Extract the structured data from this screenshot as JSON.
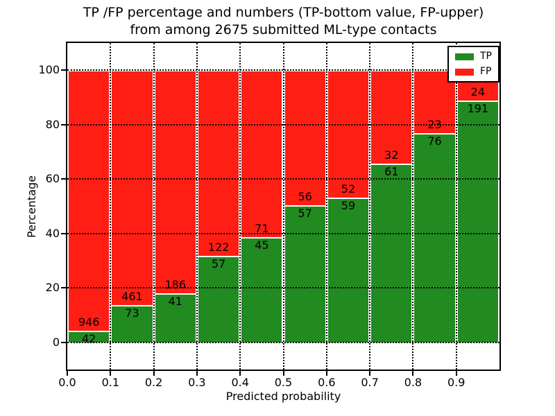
{
  "chart": {
    "title_line1": "TP /FP percentage and numbers (TP-bottom value, FP-upper)",
    "title_line2": "from among 2675 submitted ML-type contacts",
    "xlabel": "Predicted probability",
    "ylabel": "Percentage"
  },
  "colors": {
    "tp_green": "#218a21",
    "fp_red": "#ff1e14",
    "grid": "#000000",
    "background": "#ffffff"
  },
  "legend": {
    "position": "upper right",
    "entries": [
      {
        "label": "TP",
        "color": "#218a21"
      },
      {
        "label": "FP",
        "color": "#ff1e14"
      }
    ]
  },
  "chart_data": {
    "type": "bar",
    "stacked": true,
    "normalized_to_percent": true,
    "title": "TP /FP percentage and numbers (TP-bottom value, FP-upper) from among 2675 submitted ML-type contacts",
    "xlabel": "Predicted probability",
    "ylabel": "Percentage",
    "xlim": [
      0.0,
      1.0
    ],
    "ylim": [
      -10,
      110
    ],
    "grid": true,
    "legend_position": "upper right",
    "x_tick_labels": [
      "0.0",
      "0.1",
      "0.2",
      "0.3",
      "0.4",
      "0.5",
      "0.6",
      "0.7",
      "0.8",
      "0.9"
    ],
    "y_ticks": [
      0,
      20,
      40,
      60,
      80,
      100
    ],
    "categories": [
      "0.0-0.1",
      "0.1-0.2",
      "0.2-0.3",
      "0.3-0.4",
      "0.4-0.5",
      "0.5-0.6",
      "0.6-0.7",
      "0.7-0.8",
      "0.8-0.9",
      "0.9-1.0"
    ],
    "series": [
      {
        "name": "TP",
        "color": "#218a21",
        "values": [
          42,
          73,
          41,
          57,
          45,
          57,
          59,
          61,
          76,
          191
        ]
      },
      {
        "name": "FP",
        "color": "#ff1e14",
        "values": [
          946,
          461,
          186,
          122,
          71,
          56,
          52,
          32,
          23,
          24
        ]
      }
    ],
    "total_contacts": 2675
  }
}
